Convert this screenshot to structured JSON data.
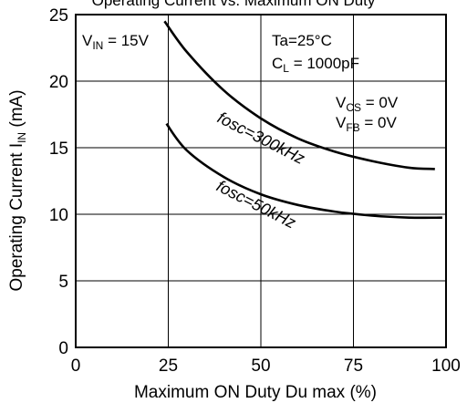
{
  "chart_data": {
    "type": "line",
    "title_partial": "Operating Current vs. Maximum ON Duty",
    "xlabel": "Maximum ON Duty  Du max  (%)",
    "ylabel_main": "Operating Current  I",
    "ylabel_sub": "IN",
    "ylabel_unit": " (mA)",
    "xlim": [
      0,
      100
    ],
    "ylim": [
      0,
      25
    ],
    "x_ticks": [
      0,
      25,
      50,
      75,
      100
    ],
    "y_ticks": [
      0,
      5,
      10,
      15,
      20,
      25
    ],
    "grid": true,
    "series": [
      {
        "name": "fosc=300kHz",
        "x": [
          24,
          30,
          40,
          50,
          60,
          70,
          80,
          90,
          97
        ],
        "y": [
          24.5,
          22.2,
          19.3,
          17.2,
          15.7,
          14.7,
          14.0,
          13.5,
          13.4
        ]
      },
      {
        "name": "fosc=50kHz",
        "x": [
          24.5,
          30,
          40,
          50,
          60,
          70,
          80,
          90,
          99
        ],
        "y": [
          16.8,
          14.8,
          12.8,
          11.5,
          10.7,
          10.2,
          9.9,
          9.75,
          9.75
        ]
      }
    ],
    "annotations": {
      "vin": {
        "main": "V",
        "sub": "IN",
        "rest": " = 15V"
      },
      "ta": "Ta=25°C",
      "cl": {
        "main": "C",
        "sub": "L",
        "rest": " = 1000pF"
      },
      "vcs": {
        "main": "V",
        "sub": "CS",
        "rest": " = 0V"
      },
      "vfb": {
        "main": "V",
        "sub": "FB",
        "rest": " = 0V"
      }
    }
  }
}
